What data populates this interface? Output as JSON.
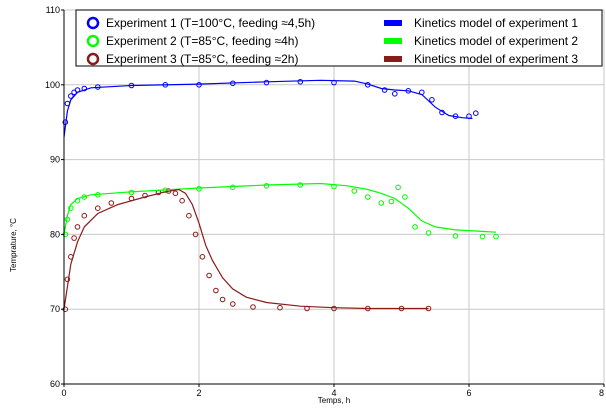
{
  "chart_data": {
    "type": "scatter",
    "title": "",
    "xlabel": "Temps, h",
    "ylabel": "Temprature, °C",
    "xlim": [
      0,
      8
    ],
    "ylim": [
      60,
      110
    ],
    "xticks": [
      "0",
      "2",
      "4",
      "6",
      "8"
    ],
    "yticks": [
      "60",
      "70",
      "80",
      "90",
      "100",
      "110"
    ],
    "grid": true,
    "legend_position": "top",
    "series": [
      {
        "name": "Experiment 1 (T=100°C, feeding ≈4,5h)",
        "kind": "scatter",
        "color": "#0000ff",
        "points": [
          [
            0.02,
            95
          ],
          [
            0.05,
            97.5
          ],
          [
            0.1,
            98.5
          ],
          [
            0.15,
            99
          ],
          [
            0.2,
            99.3
          ],
          [
            0.3,
            99.5
          ],
          [
            0.5,
            99.7
          ],
          [
            1,
            99.9
          ],
          [
            1.5,
            100
          ],
          [
            2,
            100
          ],
          [
            2.5,
            100.2
          ],
          [
            3,
            100.3
          ],
          [
            3.5,
            100.4
          ],
          [
            4,
            100.3
          ],
          [
            4.5,
            100
          ],
          [
            4.75,
            99.3
          ],
          [
            4.9,
            98.8
          ],
          [
            5.1,
            99.2
          ],
          [
            5.3,
            99
          ],
          [
            5.45,
            98
          ],
          [
            5.6,
            96.3
          ],
          [
            5.8,
            95.8
          ],
          [
            6,
            95.8
          ],
          [
            6.1,
            96.2
          ]
        ]
      },
      {
        "name": "Experiment 2 (T=85°C, feeding ≈4h)",
        "kind": "scatter",
        "color": "#00ff00",
        "points": [
          [
            0.02,
            80
          ],
          [
            0.05,
            82
          ],
          [
            0.1,
            83.5
          ],
          [
            0.2,
            84.5
          ],
          [
            0.3,
            85
          ],
          [
            0.5,
            85.3
          ],
          [
            1,
            85.6
          ],
          [
            1.5,
            85.9
          ],
          [
            2,
            86.1
          ],
          [
            2.5,
            86.3
          ],
          [
            3,
            86.5
          ],
          [
            3.5,
            86.6
          ],
          [
            4,
            86.4
          ],
          [
            4.3,
            85.8
          ],
          [
            4.5,
            85
          ],
          [
            4.7,
            84.2
          ],
          [
            4.85,
            84.4
          ],
          [
            4.95,
            86.3
          ],
          [
            5.05,
            85
          ],
          [
            5.2,
            81
          ],
          [
            5.4,
            80.2
          ],
          [
            5.8,
            79.8
          ],
          [
            6.2,
            79.7
          ],
          [
            6.4,
            79.7
          ]
        ]
      },
      {
        "name": "Experiment 3 (T=85°C, feeding ≈2h)",
        "kind": "scatter",
        "color": "#8b1a1a",
        "points": [
          [
            0.02,
            70
          ],
          [
            0.05,
            74
          ],
          [
            0.1,
            77
          ],
          [
            0.15,
            79.5
          ],
          [
            0.2,
            81
          ],
          [
            0.3,
            82.5
          ],
          [
            0.5,
            83.5
          ],
          [
            0.7,
            84.2
          ],
          [
            1,
            84.8
          ],
          [
            1.2,
            85.2
          ],
          [
            1.4,
            85.6
          ],
          [
            1.55,
            85.8
          ],
          [
            1.65,
            85.5
          ],
          [
            1.75,
            84.5
          ],
          [
            1.85,
            82.5
          ],
          [
            1.95,
            80
          ],
          [
            2.05,
            77
          ],
          [
            2.15,
            74.5
          ],
          [
            2.25,
            72.5
          ],
          [
            2.35,
            71.3
          ],
          [
            2.5,
            70.7
          ],
          [
            2.8,
            70.3
          ],
          [
            3.2,
            70.2
          ],
          [
            3.6,
            70.1
          ],
          [
            4,
            70.1
          ],
          [
            4.5,
            70.1
          ],
          [
            5,
            70.1
          ],
          [
            5.4,
            70.1
          ]
        ]
      },
      {
        "name": "Kinetics model of experiment 1",
        "kind": "line",
        "color": "#0000ff",
        "points": [
          [
            0,
            93
          ],
          [
            0.05,
            96.5
          ],
          [
            0.1,
            98
          ],
          [
            0.2,
            99
          ],
          [
            0.4,
            99.6
          ],
          [
            1,
            99.9
          ],
          [
            2,
            100.1
          ],
          [
            3,
            100.4
          ],
          [
            3.8,
            100.6
          ],
          [
            4.3,
            100.5
          ],
          [
            4.5,
            100.1
          ],
          [
            4.7,
            99.5
          ],
          [
            4.9,
            99.3
          ],
          [
            5.1,
            99.2
          ],
          [
            5.3,
            98.7
          ],
          [
            5.5,
            97
          ],
          [
            5.7,
            95.9
          ],
          [
            5.9,
            95.6
          ],
          [
            6.05,
            95.5
          ]
        ]
      },
      {
        "name": "Kinetics model of experiment 2",
        "kind": "line",
        "color": "#00ff00",
        "points": [
          [
            0,
            80
          ],
          [
            0.05,
            82.5
          ],
          [
            0.1,
            84
          ],
          [
            0.2,
            84.8
          ],
          [
            0.4,
            85.3
          ],
          [
            1,
            85.7
          ],
          [
            2,
            86.2
          ],
          [
            3,
            86.6
          ],
          [
            3.8,
            86.8
          ],
          [
            4.2,
            86.5
          ],
          [
            4.5,
            86
          ],
          [
            4.7,
            85.5
          ],
          [
            4.9,
            84.8
          ],
          [
            5.1,
            83.5
          ],
          [
            5.3,
            81.8
          ],
          [
            5.5,
            81
          ],
          [
            5.8,
            80.6
          ],
          [
            6.2,
            80.4
          ],
          [
            6.4,
            80.3
          ]
        ]
      },
      {
        "name": "Kinetics model of experiment 3",
        "kind": "line",
        "color": "#8b1a1a",
        "points": [
          [
            0,
            70
          ],
          [
            0.05,
            73
          ],
          [
            0.1,
            76
          ],
          [
            0.2,
            79
          ],
          [
            0.3,
            81
          ],
          [
            0.5,
            82.8
          ],
          [
            0.8,
            84
          ],
          [
            1.2,
            85
          ],
          [
            1.5,
            85.7
          ],
          [
            1.7,
            86
          ],
          [
            1.8,
            85.5
          ],
          [
            1.9,
            84
          ],
          [
            2,
            81.5
          ],
          [
            2.1,
            78.5
          ],
          [
            2.2,
            76.5
          ],
          [
            2.35,
            74.2
          ],
          [
            2.5,
            72.7
          ],
          [
            2.7,
            71.6
          ],
          [
            3,
            70.9
          ],
          [
            3.5,
            70.4
          ],
          [
            4,
            70.2
          ],
          [
            4.5,
            70.1
          ],
          [
            5,
            70.1
          ],
          [
            5.4,
            70.1
          ]
        ]
      }
    ]
  }
}
